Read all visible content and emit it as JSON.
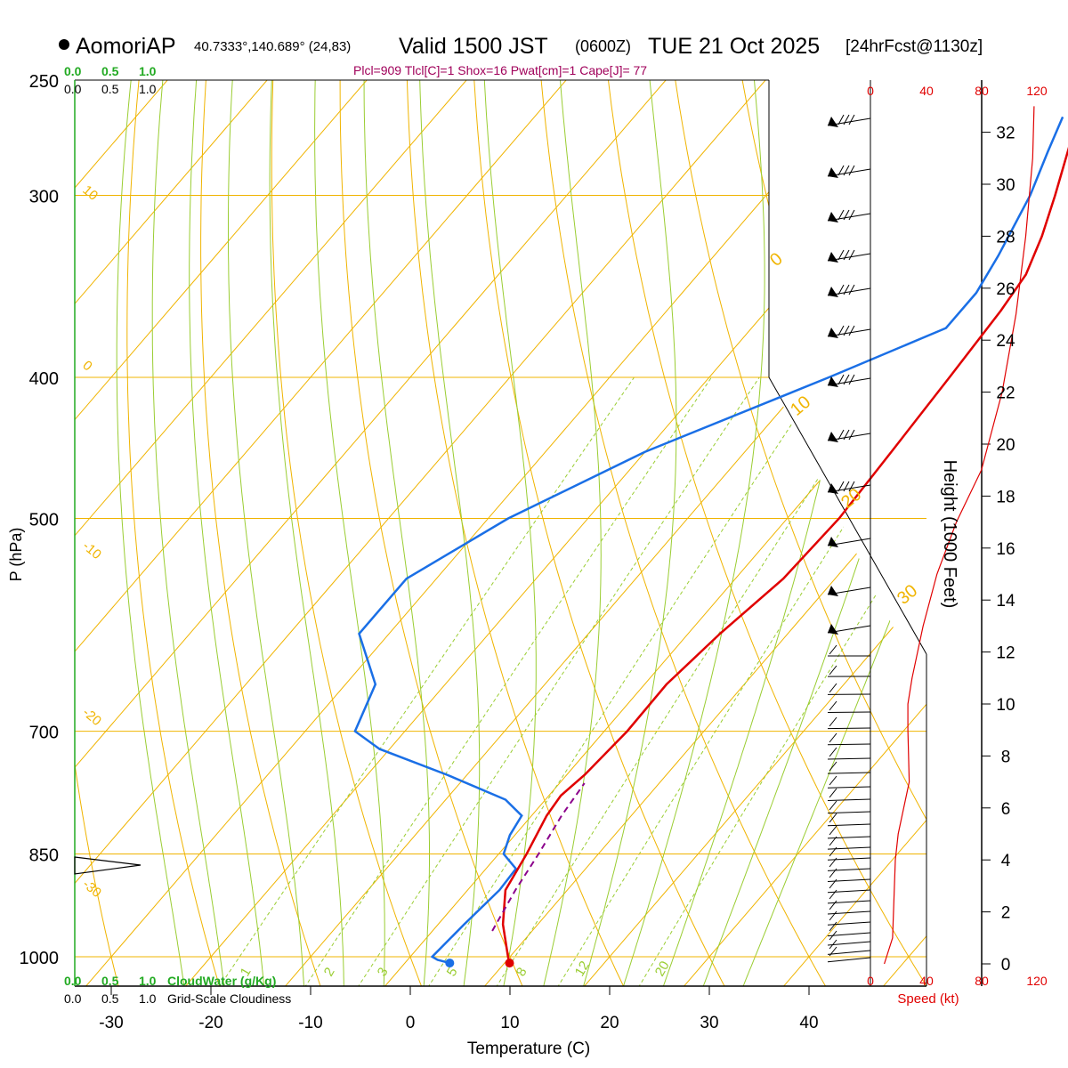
{
  "header": {
    "station": "AomoriAP",
    "coords": "40.7333°,140.689° (24,83)",
    "valid_main": "Valid 1500 JST",
    "valid_z": "(0600Z)",
    "valid_date": "TUE 21 Oct 2025",
    "fcst": "[24hrFcst@1130z]",
    "indices": "Plcl=909 Tlcl[C]=1 Shox=16 Pwat[cm]=1 Cape[J]= 77"
  },
  "labels": {
    "y_label": "P (hPa)",
    "x_label": "Temperature (C)",
    "height_label": "Height (1000 Feet)",
    "speed_label": "Speed (kt)",
    "cloudwater_label": "CloudWater (g/Kg)",
    "cloudiness_label": "Grid-Scale Cloudiness",
    "scale_vals": [
      "0.0",
      "0.5",
      "1.0"
    ],
    "scale_top_green": [
      "0.0",
      "0.5",
      "1.0"
    ],
    "scale_top_black": [
      "0.0",
      "0.5",
      "1.0"
    ],
    "speed_ticks": [
      "0",
      "40",
      "80",
      "120"
    ]
  },
  "chart_data": {
    "type": "skew-t",
    "pressure_levels": [
      250,
      300,
      400,
      500,
      700,
      850,
      1000
    ],
    "temperature_ticks": [
      -30,
      -20,
      -10,
      0,
      10,
      20,
      30,
      40
    ],
    "temperature_range": [
      -35,
      45
    ],
    "pressure_range": [
      250,
      1050
    ],
    "height_kft_ticks": [
      0,
      2,
      4,
      6,
      8,
      10,
      12,
      14,
      16,
      18,
      20,
      22,
      24,
      26,
      28,
      30,
      32
    ],
    "isotherm_labels": [
      "10",
      "0",
      "-10",
      "-20",
      "-30"
    ],
    "dry_adiabat_labels": [
      "0",
      "10",
      "20",
      "30"
    ],
    "mixing_ratio_labels": [
      "1",
      "2",
      "3",
      "5",
      "8",
      "12",
      "20"
    ],
    "temperature_profile": [
      {
        "p": 1010,
        "t": 10.5
      },
      {
        "p": 1000,
        "t": 9.8
      },
      {
        "p": 950,
        "t": 6.5
      },
      {
        "p": 900,
        "t": 3.8
      },
      {
        "p": 850,
        "t": 2.8
      },
      {
        "p": 800,
        "t": 1.5
      },
      {
        "p": 775,
        "t": 1.2
      },
      {
        "p": 750,
        "t": 1.8
      },
      {
        "p": 700,
        "t": 2.3
      },
      {
        "p": 650,
        "t": 2.2
      },
      {
        "p": 600,
        "t": 3.2
      },
      {
        "p": 550,
        "t": 4.8
      },
      {
        "p": 500,
        "t": 5.2
      },
      {
        "p": 450,
        "t": 4.7
      },
      {
        "p": 400,
        "t": 4.1
      },
      {
        "p": 360,
        "t": 3.5
      },
      {
        "p": 340,
        "t": 2.9
      },
      {
        "p": 320,
        "t": 1.2
      },
      {
        "p": 300,
        "t": -1.0
      },
      {
        "p": 280,
        "t": -3.5
      },
      {
        "p": 265,
        "t": -5.5
      }
    ],
    "dewpoint_profile": [
      {
        "p": 1010,
        "t": 4.5
      },
      {
        "p": 1005,
        "t": 3.0
      },
      {
        "p": 1000,
        "t": 2.2
      },
      {
        "p": 950,
        "t": 2.6
      },
      {
        "p": 900,
        "t": 3.2
      },
      {
        "p": 870,
        "t": 3.0
      },
      {
        "p": 850,
        "t": 0.5
      },
      {
        "p": 825,
        "t": -0.5
      },
      {
        "p": 800,
        "t": -1.0
      },
      {
        "p": 780,
        "t": -4.0
      },
      {
        "p": 750,
        "t": -12
      },
      {
        "p": 720,
        "t": -21
      },
      {
        "p": 700,
        "t": -25
      },
      {
        "p": 650,
        "t": -27
      },
      {
        "p": 600,
        "t": -33
      },
      {
        "p": 550,
        "t": -33
      },
      {
        "p": 500,
        "t": -28
      },
      {
        "p": 450,
        "t": -20
      },
      {
        "p": 400,
        "t": -8
      },
      {
        "p": 370,
        "t": -0.5
      },
      {
        "p": 350,
        "t": -0.5
      },
      {
        "p": 330,
        "t": -1.5
      },
      {
        "p": 300,
        "t": -3.5
      },
      {
        "p": 280,
        "t": -5.5
      },
      {
        "p": 265,
        "t": -7.0
      }
    ],
    "parcel_profile": [
      {
        "p": 960,
        "t": 6.0
      },
      {
        "p": 900,
        "t": 4.8
      },
      {
        "p": 850,
        "t": 4.0
      },
      {
        "p": 800,
        "t": 3.0
      },
      {
        "p": 760,
        "t": 2.5
      }
    ],
    "surface_temp": 10.5,
    "surface_dewpoint": 4.5,
    "wind_speed_kt": [
      {
        "h": 0,
        "s": 10
      },
      {
        "h": 1,
        "s": 16
      },
      {
        "h": 4,
        "s": 18
      },
      {
        "h": 5,
        "s": 20
      },
      {
        "h": 7,
        "s": 28
      },
      {
        "h": 9,
        "s": 27
      },
      {
        "h": 10,
        "s": 27
      },
      {
        "h": 11,
        "s": 30
      },
      {
        "h": 13,
        "s": 38
      },
      {
        "h": 15,
        "s": 48
      },
      {
        "h": 17,
        "s": 62
      },
      {
        "h": 19,
        "s": 80
      },
      {
        "h": 22,
        "s": 95
      },
      {
        "h": 25,
        "s": 105
      },
      {
        "h": 28,
        "s": 112
      },
      {
        "h": 31,
        "s": 117
      },
      {
        "h": 33,
        "s": 118
      }
    ]
  },
  "colors": {
    "isotherm": "#f0b400",
    "dry_adiabat": "#f0b400",
    "moist_adiabat": "#9acd32",
    "mixing_ratio": "#9acd32",
    "temperature": "#e00000",
    "dewpoint": "#1a6fe6",
    "parcel": "#8b008b",
    "cloud_green": "#22aa22",
    "speed_red": "#e00000",
    "indices": "#a0005a"
  }
}
